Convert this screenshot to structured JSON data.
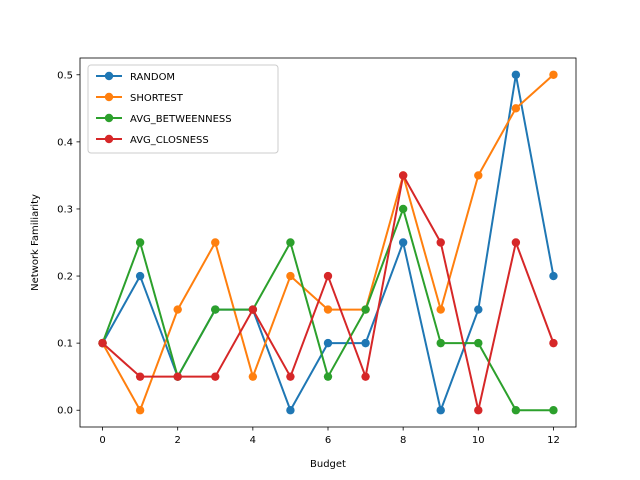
{
  "chart_data": {
    "type": "line",
    "title": "",
    "xlabel": "Budget",
    "ylabel": "Network Familiarity",
    "x": [
      0,
      1,
      2,
      3,
      4,
      5,
      6,
      7,
      8,
      9,
      10,
      11,
      12
    ],
    "xlim": [
      -0.6,
      12.6
    ],
    "ylim": [
      -0.025,
      0.525
    ],
    "xticks": [
      0,
      2,
      4,
      6,
      8,
      10,
      12
    ],
    "yticks": [
      0.0,
      0.1,
      0.2,
      0.3,
      0.4,
      0.5
    ],
    "ytick_labels": [
      "0.0",
      "0.1",
      "0.2",
      "0.3",
      "0.4",
      "0.5"
    ],
    "grid": false,
    "legend_position": "upper-left",
    "series": [
      {
        "name": "RANDOM",
        "color": "#1f77b4",
        "values": [
          0.1,
          0.2,
          0.05,
          0.15,
          0.15,
          0.0,
          0.1,
          0.1,
          0.25,
          0.0,
          0.15,
          0.5,
          0.2
        ]
      },
      {
        "name": "SHORTEST",
        "color": "#ff7f0e",
        "values": [
          0.1,
          0.0,
          0.15,
          0.25,
          0.05,
          0.2,
          0.15,
          0.15,
          0.35,
          0.15,
          0.35,
          0.45,
          0.5
        ]
      },
      {
        "name": "AVG_BETWEENNESS",
        "color": "#2ca02c",
        "values": [
          0.1,
          0.25,
          0.05,
          0.15,
          0.15,
          0.25,
          0.05,
          0.15,
          0.3,
          0.1,
          0.1,
          0.0,
          0.0
        ]
      },
      {
        "name": "AVG_CLOSNESS",
        "color": "#d62728",
        "values": [
          0.1,
          0.05,
          0.05,
          0.05,
          0.15,
          0.05,
          0.2,
          0.05,
          0.35,
          0.25,
          0.0,
          0.25,
          0.1
        ]
      }
    ]
  }
}
